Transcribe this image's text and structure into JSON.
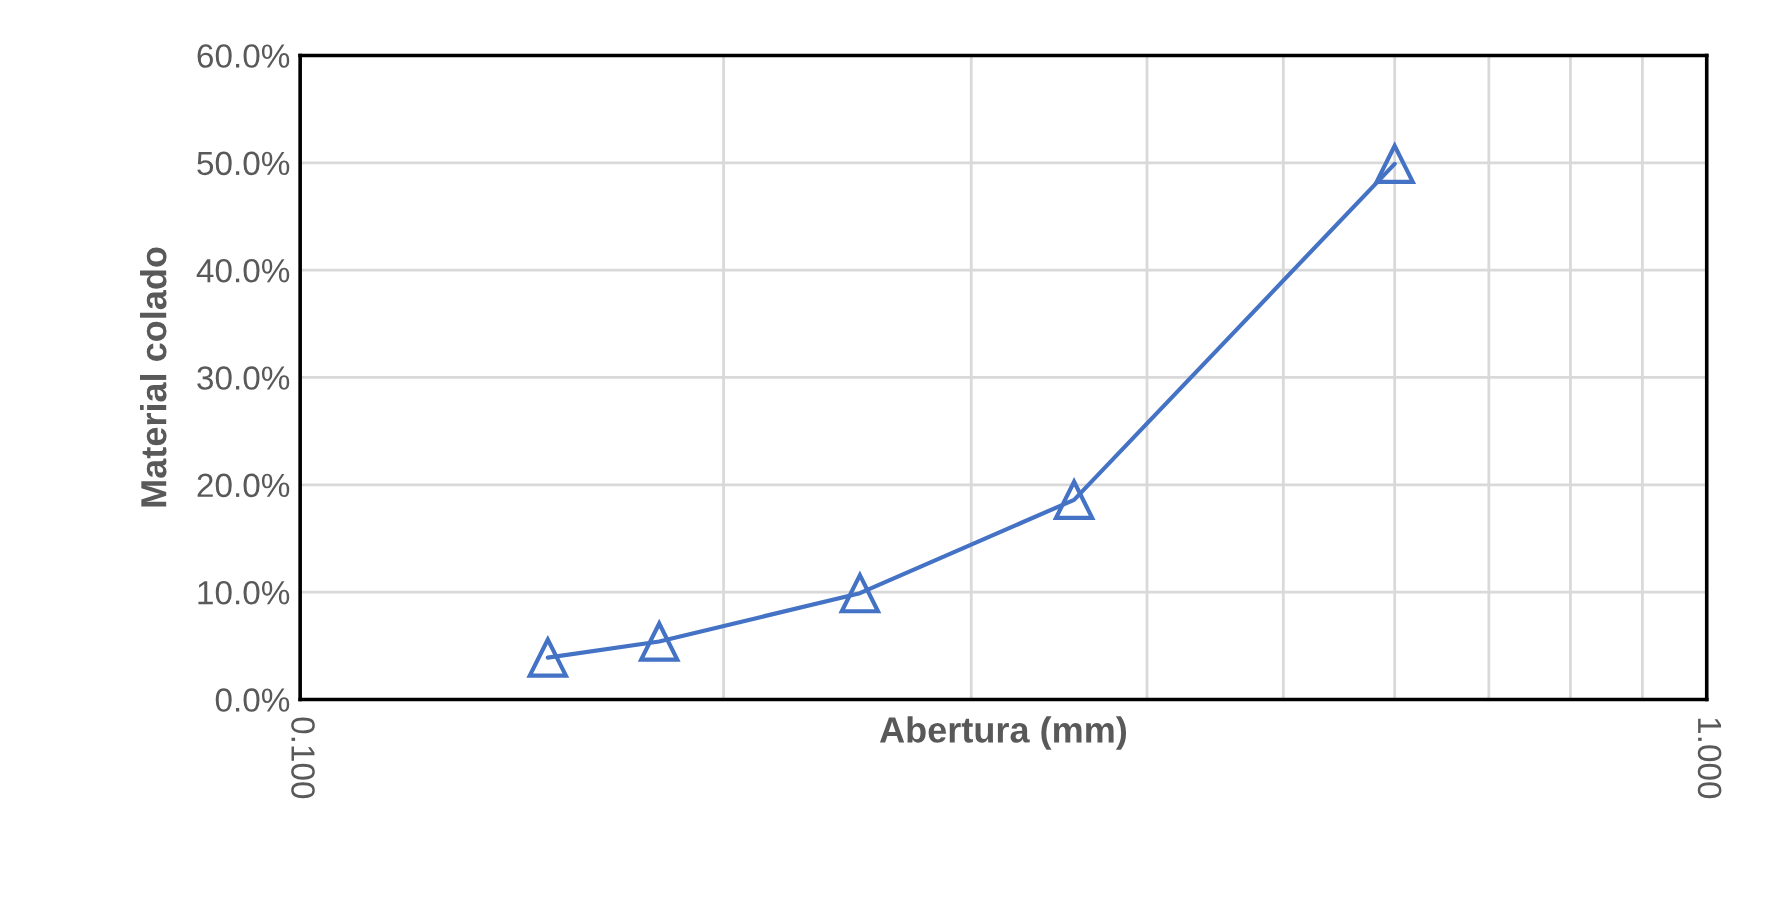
{
  "chart_data": {
    "type": "line",
    "xlabel": "Abertura (mm)",
    "ylabel": "Material colado",
    "x": [
      0.15,
      0.18,
      0.25,
      0.355,
      0.6
    ],
    "series": [
      {
        "color": "#4472c4",
        "values": [
          3.9,
          5.4,
          9.9,
          18.6,
          49.9
        ]
      }
    ],
    "log": "x",
    "marker": "triangle",
    "line_style": "solid",
    "grid": true,
    "xlim": [
      0.1,
      1.0
    ],
    "xticks": [
      {
        "value": 0.1,
        "label": "0.100"
      },
      {
        "value": 0.2,
        "label": null
      },
      {
        "value": 0.3,
        "label": null
      },
      {
        "value": 0.4,
        "label": null
      },
      {
        "value": 0.5,
        "label": null
      },
      {
        "value": 0.6,
        "label": null
      },
      {
        "value": 0.7,
        "label": null
      },
      {
        "value": 0.8,
        "label": null
      },
      {
        "value": 0.9,
        "label": null
      },
      {
        "value": 1.0,
        "label": "1.000"
      }
    ],
    "ylim": [
      0,
      60
    ],
    "yticks": [
      {
        "value": 0,
        "label": "0.0%"
      },
      {
        "value": 10,
        "label": "10.0%"
      },
      {
        "value": 20,
        "label": "20.0%"
      },
      {
        "value": 30,
        "label": "30.0%"
      },
      {
        "value": 40,
        "label": "40.0%"
      },
      {
        "value": 50,
        "label": "50.0%"
      },
      {
        "value": 60,
        "label": "60.0%"
      }
    ]
  }
}
